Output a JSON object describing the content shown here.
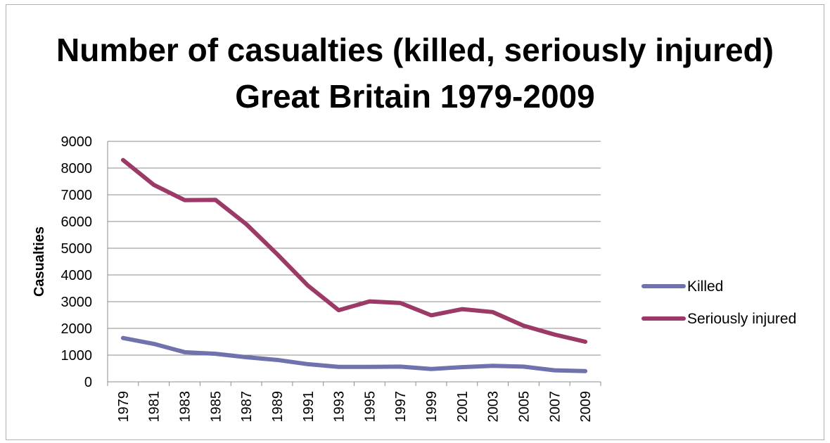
{
  "chart_data": {
    "type": "line",
    "title": "Number of casualties (killed, seriously injured)",
    "subtitle": "Great Britain 1979-2009",
    "xlabel": "",
    "ylabel": "Casualties",
    "ylim": [
      0,
      9000
    ],
    "yticks": [
      "0",
      "1000",
      "2000",
      "3000",
      "4000",
      "5000",
      "6000",
      "7000",
      "8000",
      "9000"
    ],
    "grid": true,
    "legend_position": "right",
    "categories": [
      "1979",
      "1981",
      "1983",
      "1985",
      "1987",
      "1989",
      "1991",
      "1993",
      "1995",
      "1997",
      "1999",
      "2001",
      "2003",
      "2005",
      "2007",
      "2009"
    ],
    "series": [
      {
        "name": "Killed",
        "color": "#7072ad",
        "values": [
          1640,
          1420,
          1110,
          1050,
          920,
          820,
          660,
          560,
          560,
          570,
          480,
          550,
          600,
          570,
          430,
          400
        ]
      },
      {
        "name": "Seriously injured",
        "color": "#9b3a66",
        "values": [
          8300,
          7370,
          6800,
          6810,
          5900,
          4780,
          3600,
          2680,
          3010,
          2950,
          2490,
          2720,
          2610,
          2100,
          1770,
          1500
        ]
      }
    ]
  }
}
